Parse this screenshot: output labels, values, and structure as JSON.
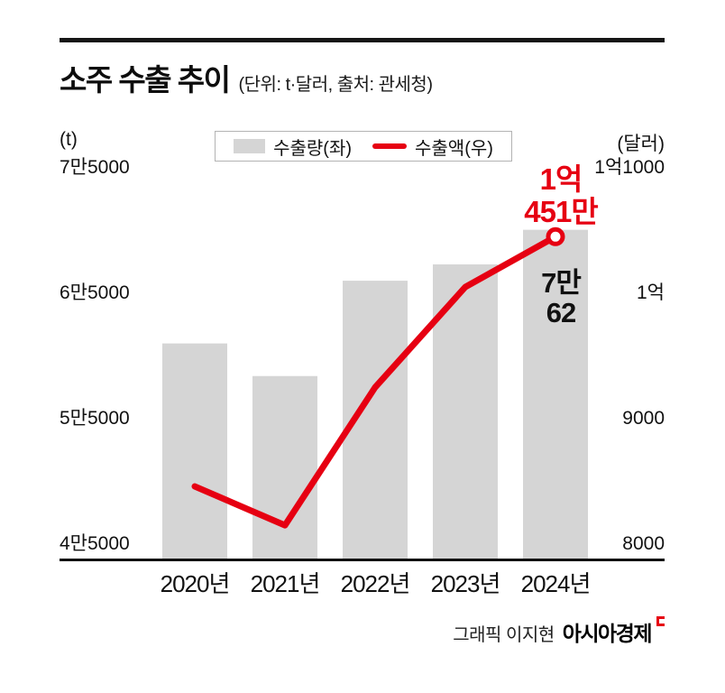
{
  "header": {
    "title": "소주 수출 추이",
    "subtitle": "(단위: t·달러, 출처: 관세청)"
  },
  "legend": {
    "bar_label": "수출량(좌)",
    "line_label": "수출액(우)"
  },
  "axes": {
    "left_unit": "(t)",
    "right_unit": "(달러)"
  },
  "chart_data": {
    "type": "bar",
    "subtype": "bar+line combo",
    "categories": [
      "2020년",
      "2021년",
      "2022년",
      "2023년",
      "2024년"
    ],
    "series": [
      {
        "name": "수출량(좌)",
        "type": "bar",
        "axis": "left",
        "unit": "t",
        "values": [
          61000,
          58400,
          66000,
          67300,
          70062
        ]
      },
      {
        "name": "수출액(우)",
        "type": "line",
        "axis": "right",
        "unit": "만달러",
        "values": [
          8460,
          8150,
          9250,
          10050,
          10451
        ]
      }
    ],
    "left_axis": {
      "ticks": [
        75000,
        65000,
        55000,
        45000
      ],
      "tick_labels": [
        "7만5000",
        "6만5000",
        "5만5000",
        "4만5000"
      ],
      "range": [
        45000,
        75000
      ]
    },
    "right_axis": {
      "ticks": [
        11000,
        10000,
        9000,
        8000
      ],
      "tick_labels": [
        "1억1000",
        "1억",
        "9000",
        "8000"
      ],
      "range": [
        8000,
        11000
      ]
    },
    "annotations": {
      "line_value_label": [
        "1억",
        "451만"
      ],
      "bar_value_label": [
        "7만",
        "62"
      ]
    },
    "colors": {
      "bar": "#d5d5d5",
      "line": "#e60012",
      "axis": "#111111"
    },
    "grid": false,
    "legend_position": "top"
  },
  "icons": {
    "bar_swatch": "gray-rect",
    "line_swatch": "red-rounded-line",
    "brand_mark": "red-open-square"
  },
  "footer": {
    "credit": "그래픽 이지현",
    "brand": "아시아경제"
  }
}
